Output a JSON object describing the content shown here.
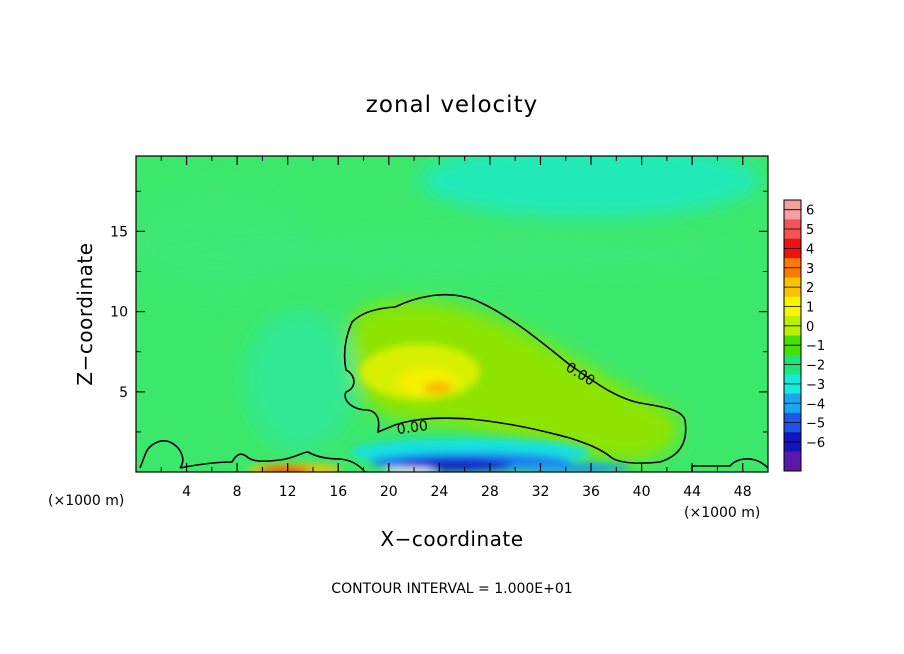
{
  "chart_data": {
    "type": "heatmap",
    "title": "zonal velocity",
    "xlabel": "X−coordinate",
    "ylabel": "Z−coordinate",
    "x_unit": "(×1000 m)",
    "y_unit": "(×1000 m)",
    "xlim": [
      0,
      50
    ],
    "ylim": [
      0,
      19.7
    ],
    "x_ticks": [
      4,
      8,
      12,
      16,
      20,
      24,
      28,
      32,
      36,
      40,
      44,
      48
    ],
    "x_tick_labels": [
      "4",
      "8",
      "12",
      "16",
      "20",
      "24",
      "28",
      "32",
      "36",
      "40",
      "44",
      "48"
    ],
    "y_ticks": [
      5,
      10,
      15
    ],
    "y_tick_labels": [
      "5",
      "10",
      "15"
    ],
    "colorbar": {
      "levels": [
        6,
        5,
        4,
        3,
        2,
        1,
        0,
        -1,
        -2,
        -3,
        -4,
        -5,
        -6
      ],
      "labels": [
        "6",
        "5",
        "4",
        "3",
        "2",
        "1",
        "0",
        "−1",
        "−2",
        "−3",
        "−4",
        "−5",
        "−6"
      ],
      "colors": [
        "#f5a0a0",
        "#f25555",
        "#ee1111",
        "#f87a00",
        "#f8c400",
        "#f5f500",
        "#b8f000",
        "#48e000",
        "#1ee676",
        "#18ead8",
        "#1aa6ee",
        "#1e56e8",
        "#1414c0",
        "#5a18a8"
      ]
    },
    "contour_labels": [
      "0.00",
      "0.00"
    ],
    "regions": [
      {
        "name": "upper-right minimum",
        "center": [
          34,
          17.5
        ],
        "value": -1
      },
      {
        "name": "main maximum",
        "center": [
          23,
          5.6
        ],
        "value": 2.4
      },
      {
        "name": "surface minimum",
        "center": [
          25,
          0.6
        ],
        "value": -4.5
      },
      {
        "name": "surface maximum",
        "center": [
          11.5,
          0.2
        ],
        "value": 4.5
      }
    ],
    "footer": "CONTOUR INTERVAL = 1.000E+01"
  },
  "colors": {
    "background": "#3ce86c",
    "plus_one": "#48e000"
  }
}
